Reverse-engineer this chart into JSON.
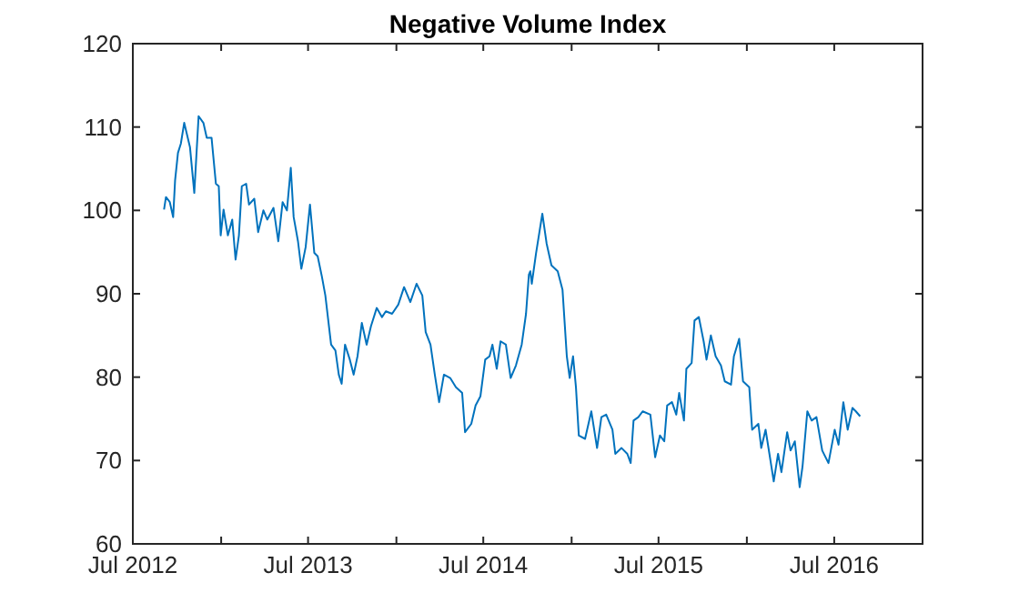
{
  "chart_data": {
    "type": "line",
    "title": "Negative Volume Index",
    "xlim": [
      "2012-07-01",
      "2017-01-01"
    ],
    "xticks": [
      {
        "value": "2012-07-01",
        "label": "Jul 2012"
      },
      {
        "value": "2013-01-01",
        "label": null
      },
      {
        "value": "2013-07-01",
        "label": "Jul 2013"
      },
      {
        "value": "2014-01-01",
        "label": null
      },
      {
        "value": "2014-07-01",
        "label": "Jul 2014"
      },
      {
        "value": "2015-01-01",
        "label": null
      },
      {
        "value": "2015-07-01",
        "label": "Jul 2015"
      },
      {
        "value": "2016-01-01",
        "label": null
      },
      {
        "value": "2016-07-01",
        "label": "Jul 2016"
      }
    ],
    "ylim": [
      60,
      120
    ],
    "yticks": [
      60,
      70,
      80,
      90,
      100,
      110,
      120
    ],
    "x": [
      "2012-09-04",
      "2012-09-08",
      "2012-09-16",
      "2012-09-23",
      "2012-09-27",
      "2012-10-03",
      "2012-10-09",
      "2012-10-16",
      "2012-10-28",
      "2012-11-06",
      "2012-11-15",
      "2012-11-25",
      "2012-12-02",
      "2012-12-12",
      "2012-12-21",
      "2012-12-27",
      "2012-12-31",
      "2013-01-06",
      "2013-01-15",
      "2013-01-24",
      "2013-01-31",
      "2013-02-07",
      "2013-02-13",
      "2013-02-22",
      "2013-02-28",
      "2013-03-11",
      "2013-03-19",
      "2013-03-30",
      "2013-04-07",
      "2013-04-20",
      "2013-04-30",
      "2013-05-09",
      "2013-05-18",
      "2013-05-26",
      "2013-06-01",
      "2013-06-10",
      "2013-06-17",
      "2013-06-26",
      "2013-07-05",
      "2013-07-14",
      "2013-07-21",
      "2013-07-30",
      "2013-08-06",
      "2013-08-18",
      "2013-08-27",
      "2013-09-03",
      "2013-09-09",
      "2013-09-16",
      "2013-09-26",
      "2013-10-04",
      "2013-10-12",
      "2013-10-21",
      "2013-10-31",
      "2013-11-09",
      "2013-11-21",
      "2013-12-02",
      "2013-12-10",
      "2013-12-23",
      "2014-01-05",
      "2014-01-17",
      "2014-01-30",
      "2014-02-12",
      "2014-02-24",
      "2014-03-03",
      "2014-03-13",
      "2014-03-22",
      "2014-03-31",
      "2014-04-10",
      "2014-04-23",
      "2014-05-05",
      "2014-05-18",
      "2014-05-24",
      "2014-06-06",
      "2014-06-15",
      "2014-06-25",
      "2014-07-05",
      "2014-07-14",
      "2014-07-20",
      "2014-07-29",
      "2014-08-06",
      "2014-08-17",
      "2014-08-27",
      "2014-09-07",
      "2014-09-19",
      "2014-09-28",
      "2014-10-04",
      "2014-10-07",
      "2014-10-10",
      "2014-10-19",
      "2014-11-01",
      "2014-11-10",
      "2014-11-20",
      "2014-12-03",
      "2014-12-13",
      "2014-12-22",
      "2014-12-28",
      "2015-01-04",
      "2015-01-10",
      "2015-01-16",
      "2015-01-29",
      "2015-02-11",
      "2015-02-23",
      "2015-03-04",
      "2015-03-14",
      "2015-03-27",
      "2015-04-02",
      "2015-04-15",
      "2015-04-27",
      "2015-05-04",
      "2015-05-10",
      "2015-05-20",
      "2015-05-29",
      "2015-06-14",
      "2015-06-24",
      "2015-07-04",
      "2015-07-13",
      "2015-07-19",
      "2015-07-29",
      "2015-08-07",
      "2015-08-13",
      "2015-08-23",
      "2015-08-28",
      "2015-09-08",
      "2015-09-14",
      "2015-09-23",
      "2015-10-03",
      "2015-10-09",
      "2015-10-18",
      "2015-10-28",
      "2015-11-08",
      "2015-11-16",
      "2015-11-29",
      "2015-12-05",
      "2015-12-16",
      "2015-12-24",
      "2016-01-06",
      "2016-01-12",
      "2016-01-25",
      "2016-01-31",
      "2016-02-09",
      "2016-02-17",
      "2016-02-26",
      "2016-03-06",
      "2016-03-13",
      "2016-03-25",
      "2016-04-01",
      "2016-04-10",
      "2016-04-20",
      "2016-04-26",
      "2016-05-06",
      "2016-05-15",
      "2016-05-25",
      "2016-06-06",
      "2016-06-19",
      "2016-07-02",
      "2016-07-10",
      "2016-07-20",
      "2016-07-29",
      "2016-08-08",
      "2016-08-15",
      "2016-08-24"
    ],
    "series": [
      {
        "color": "#0072bd",
        "values": [
          100.1,
          101.6,
          101,
          99.2,
          103.6,
          106.9,
          108,
          110.5,
          107.6,
          102.1,
          111.3,
          110.5,
          108.7,
          108.7,
          103.2,
          102.9,
          97,
          100.1,
          97,
          98.9,
          94.1,
          97,
          102.9,
          103.2,
          100.7,
          101.4,
          97.4,
          100,
          98.9,
          100.3,
          96.3,
          101,
          100,
          105.1,
          99.2,
          96.3,
          93,
          95.6,
          100.7,
          94.9,
          94.5,
          92,
          89.8,
          83.9,
          83.2,
          80.3,
          79.2,
          83.9,
          82.1,
          80.3,
          82.5,
          86.5,
          83.9,
          86.1,
          88.3,
          87.2,
          87.9,
          87.6,
          88.7,
          90.8,
          89,
          91.2,
          89.8,
          85.4,
          83.9,
          80.3,
          77,
          80.3,
          79.9,
          78.8,
          78.1,
          73.4,
          74.4,
          76.6,
          77.7,
          82.1,
          82.5,
          83.9,
          81,
          84.3,
          83.9,
          79.9,
          81.4,
          83.9,
          87.6,
          92.3,
          92.7,
          91.2,
          94.9,
          99.6,
          96,
          93.4,
          92.7,
          90.5,
          82.5,
          79.9,
          82.5,
          78.8,
          73,
          72.6,
          75.9,
          71.5,
          75.2,
          75.5,
          73.7,
          70.8,
          71.5,
          70.8,
          69.7,
          74.8,
          75.2,
          75.9,
          75.5,
          70.4,
          73,
          72.3,
          76.6,
          77,
          75.5,
          78.1,
          74.8,
          81,
          81.7,
          86.8,
          87.2,
          84.3,
          82.1,
          85,
          82.5,
          81.4,
          79.5,
          79.1,
          82.5,
          84.6,
          79.5,
          78.8,
          73.7,
          74.4,
          71.5,
          73.7,
          70.8,
          67.5,
          70.8,
          68.6,
          73.4,
          71.2,
          72.3,
          66.8,
          69.3,
          75.9,
          74.8,
          75.2,
          71.2,
          69.7,
          73.7,
          71.9,
          77,
          73.7,
          76.3,
          75.9,
          75.3
        ]
      }
    ]
  }
}
